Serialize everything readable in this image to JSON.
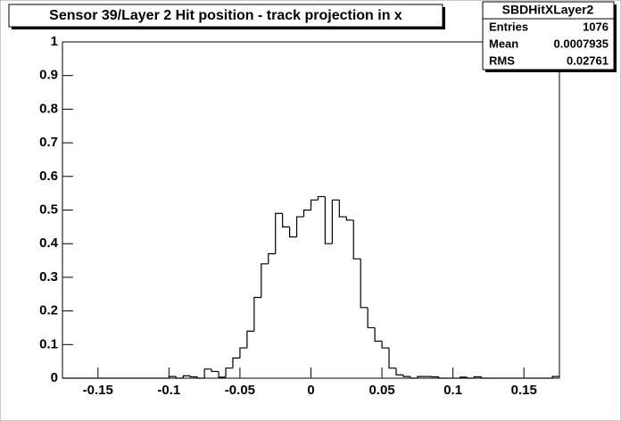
{
  "chart_data": {
    "type": "histogram",
    "title": "Sensor 39/Layer 2 Hit position - track projection in x",
    "bins": [
      -0.175,
      -0.17,
      -0.165,
      -0.16,
      -0.155,
      -0.15,
      -0.145,
      -0.14,
      -0.135,
      -0.13,
      -0.125,
      -0.12,
      -0.115,
      -0.11,
      -0.105,
      -0.1,
      -0.095,
      -0.09,
      -0.085,
      -0.08,
      -0.075,
      -0.07,
      -0.065,
      -0.06,
      -0.055,
      -0.05,
      -0.045,
      -0.04,
      -0.035,
      -0.03,
      -0.025,
      -0.02,
      -0.015,
      -0.01,
      -0.005,
      0,
      0.005,
      0.01,
      0.015,
      0.02,
      0.025,
      0.03,
      0.035,
      0.04,
      0.045,
      0.05,
      0.055,
      0.06,
      0.065,
      0.07,
      0.075,
      0.08,
      0.085,
      0.09,
      0.095,
      0.1,
      0.105,
      0.11,
      0.115,
      0.12,
      0.125,
      0.13,
      0.135,
      0.14,
      0.145,
      0.15,
      0.155,
      0.16,
      0.165,
      0.17,
      0.175
    ],
    "counts": [
      0,
      0,
      0,
      0,
      0,
      0,
      0,
      0,
      0,
      0,
      0,
      0,
      0,
      0,
      0,
      0.005,
      0,
      0.007,
      0.004,
      0,
      0.027,
      0.02,
      0.003,
      0.03,
      0.06,
      0.09,
      0.14,
      0.24,
      0.34,
      0.37,
      0.49,
      0.45,
      0.42,
      0.48,
      0.5,
      0.53,
      0.54,
      0.4,
      0.53,
      0.48,
      0.47,
      0.355,
      0.21,
      0.15,
      0.11,
      0.09,
      0.03,
      0.01,
      0.005,
      0,
      0.005,
      0.005,
      0.004,
      0,
      0,
      0,
      0.003,
      0,
      0.004,
      0,
      0,
      0,
      0,
      0,
      0,
      0,
      0,
      0,
      0,
      0.005
    ],
    "color": "#000000",
    "xlim": [
      -0.175,
      0.175
    ],
    "xticks": [
      -0.15,
      -0.1,
      -0.05,
      0,
      0.05,
      0.1,
      0.15
    ],
    "ylim": [
      0,
      1
    ],
    "yticks": [
      0,
      0.1,
      0.2,
      0.3,
      0.4,
      0.5,
      0.6,
      0.7,
      0.8,
      0.9,
      1
    ],
    "stats": {
      "name": "SBDHitXLayer2",
      "rows": [
        [
          "Entries",
          1076
        ],
        [
          "Mean",
          0.0007935
        ],
        [
          "RMS",
          0.02761
        ]
      ]
    }
  }
}
